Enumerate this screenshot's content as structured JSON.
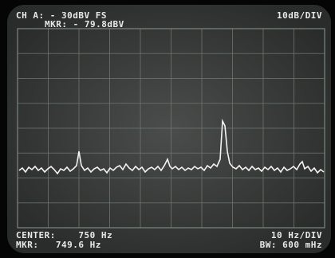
{
  "header": {
    "channel": "CH A: - 30dBV FS",
    "scale": "10dB/DIV",
    "marker": "MKR: - 79.8dBV"
  },
  "footer": {
    "center": "CENTER:    750 Hz",
    "marker_freq": "MKR:   749.6 Hz",
    "span": "10 Hz/DIV",
    "bandwidth": "BW: 600 mHz"
  }
}
